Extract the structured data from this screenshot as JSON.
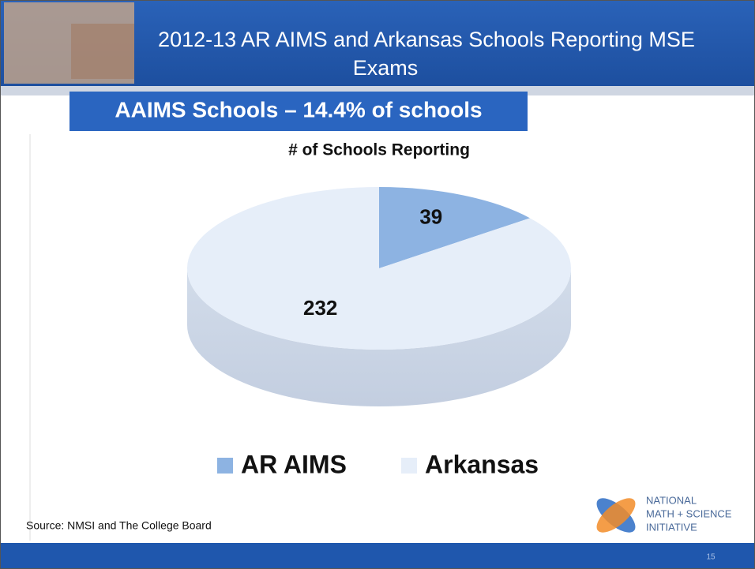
{
  "slide": {
    "title": "2012-13 AR AIMS and Arkansas Schools Reporting MSE Exams",
    "banner": "AAIMS Schools – 14.4% of schools",
    "source": "Source: NMSI and The College Board",
    "logo": [
      "NATIONAL",
      "MATH + SCIENCE",
      "INITIATIVE"
    ],
    "page_number": "15"
  },
  "chart_data": {
    "type": "pie",
    "title": "# of Schools Reporting",
    "categories": [
      "AR AIMS",
      "Arkansas"
    ],
    "values": [
      39,
      232
    ],
    "colors": [
      "#8db3e2",
      "#e6eef9"
    ],
    "legend": "bottom"
  }
}
